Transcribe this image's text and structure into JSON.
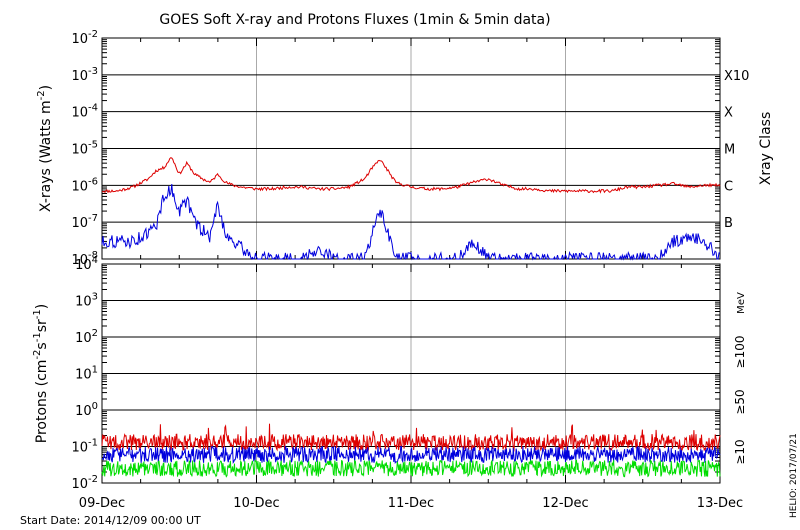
{
  "title": "GOES Soft X-ray and Protons Fluxes   (1min & 5min data)",
  "footer": {
    "start_date": "Start Date: 2014/12/09 00:00 UT",
    "stamp": "HELIO: 2017/07/21"
  },
  "colors": {
    "red": "#dd0000",
    "blue": "#0000dd",
    "green": "#00dd00",
    "grid": "#000000",
    "day_lines": "#aaaaaa"
  },
  "chart_data": [
    {
      "type": "line",
      "panel": "xray",
      "ylabel": "X-rays (Watts m-2)",
      "yscale": "log",
      "ylim": [
        1e-08,
        0.01
      ],
      "y_ticks": [
        "10-2",
        "10-3",
        "10-4",
        "10-5",
        "10-6",
        "10-7",
        "10-8"
      ],
      "right_axis_title": "Xray Class",
      "class_labels": [
        "X10",
        "X",
        "M",
        "C",
        "B"
      ],
      "x_ticks": [
        "09-Dec",
        "10-Dec",
        "11-Dec",
        "12-Dec",
        "13-Dec"
      ],
      "x": [
        0.0,
        0.1,
        0.2,
        0.3,
        0.35,
        0.4,
        0.45,
        0.5,
        0.55,
        0.6,
        0.65,
        0.7,
        0.75,
        0.8,
        0.85,
        0.9,
        1.0,
        1.1,
        1.2,
        1.3,
        1.4,
        1.5,
        1.6,
        1.7,
        1.75,
        1.8,
        1.85,
        1.9,
        2.0,
        2.1,
        2.2,
        2.3,
        2.4,
        2.5,
        2.6,
        2.7,
        2.8,
        2.9,
        3.0,
        3.1,
        3.2,
        3.3,
        3.4,
        3.5,
        3.6,
        3.7,
        3.8,
        3.9,
        4.0
      ],
      "series": [
        {
          "name": "",
          "color": "red",
          "values": [
            7e-07,
            7e-07,
            9e-07,
            1.5e-06,
            2.5e-06,
            3e-06,
            6e-06,
            2e-06,
            4e-06,
            2e-06,
            1.5e-06,
            1.2e-06,
            2e-06,
            1.2e-06,
            1e-06,
            9e-07,
            8e-07,
            8e-07,
            9e-07,
            9e-07,
            8e-07,
            8e-07,
            9e-07,
            1.5e-06,
            3e-06,
            5e-06,
            2.5e-06,
            1.2e-06,
            9e-07,
            8e-07,
            8e-07,
            9e-07,
            1.2e-06,
            1.5e-06,
            1e-06,
            8e-07,
            8e-07,
            7e-07,
            7e-07,
            7e-07,
            7e-07,
            7e-07,
            9e-07,
            9e-07,
            1e-06,
            1.1e-06,
            9e-07,
            1e-06,
            1e-06
          ]
        },
        {
          "name": "",
          "color": "blue",
          "values": [
            3e-08,
            3e-08,
            3e-08,
            5e-08,
            8e-08,
            5e-07,
            8e-07,
            2e-07,
            4e-07,
            1e-07,
            6e-08,
            4e-08,
            3e-07,
            5e-08,
            3e-08,
            2e-08,
            1e-08,
            1e-08,
            1e-08,
            1e-08,
            2e-08,
            1e-08,
            1e-08,
            1e-08,
            5e-08,
            2e-07,
            5e-08,
            1e-08,
            1e-08,
            1e-08,
            1e-08,
            1e-08,
            3e-08,
            1e-08,
            1e-08,
            1e-08,
            1e-08,
            1e-08,
            1e-08,
            1e-08,
            1e-08,
            1e-08,
            1e-08,
            1e-08,
            1e-08,
            3e-08,
            4e-08,
            3e-08,
            1e-08
          ]
        }
      ]
    },
    {
      "type": "line",
      "panel": "protons",
      "ylabel": "Protons (cm-2s-1sr-1)",
      "yscale": "log",
      "ylim": [
        0.01,
        10000
      ],
      "y_ticks": [
        "104",
        "103",
        "102",
        "101",
        "100",
        "10-1",
        "10-2"
      ],
      "right_axis_unit": "MeV",
      "threshold_line": 10,
      "x_ticks": [
        "09-Dec",
        "10-Dec",
        "11-Dec",
        "12-Dec",
        "13-Dec"
      ],
      "series": [
        {
          "name": "≥10",
          "color": "red",
          "mean": 0.13,
          "values_range": [
            0.08,
            0.5
          ]
        },
        {
          "name": "≥50",
          "color": "blue",
          "mean": 0.06,
          "values_range": [
            0.03,
            0.12
          ]
        },
        {
          "name": "≥100",
          "color": "green",
          "mean": 0.025,
          "values_range": [
            0.012,
            0.05
          ]
        }
      ]
    }
  ]
}
